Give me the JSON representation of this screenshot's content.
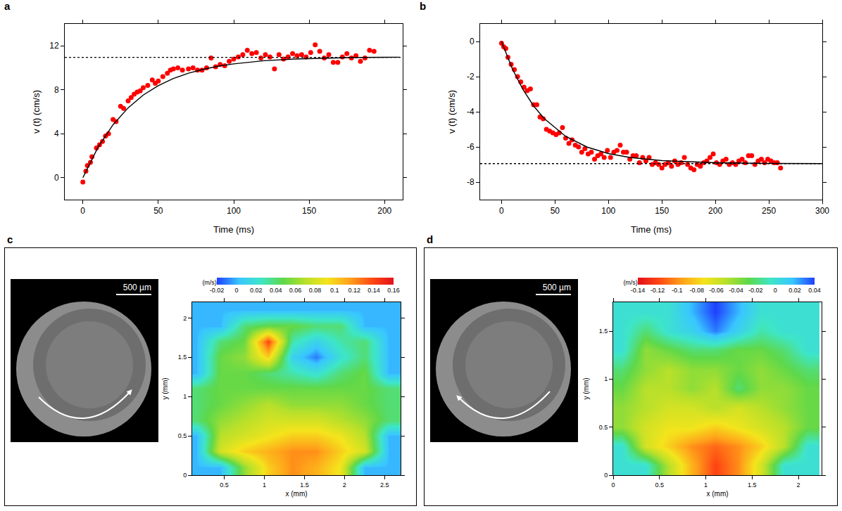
{
  "chart_data": [
    {
      "panel": "a",
      "type": "scatter",
      "x_label": "Time (ms)",
      "y_label": "v (t) (cm/s)",
      "grid": false,
      "xlim": [
        -12,
        212
      ],
      "xticks": [
        0,
        50,
        100,
        150,
        200
      ],
      "ylim": [
        -2,
        14
      ],
      "yticks": [
        0,
        4,
        8,
        12
      ],
      "series": [
        {
          "type": "scatter",
          "marker": "circle",
          "color": "#ff0000",
          "x": [
            0,
            2,
            3,
            5,
            6,
            9,
            11,
            13,
            15,
            17,
            20,
            22,
            25,
            27,
            30,
            32,
            34,
            36,
            38,
            40,
            43,
            46,
            48,
            50,
            53,
            56,
            58,
            60,
            63,
            66,
            70,
            73,
            76,
            79,
            82,
            85,
            88,
            91,
            94,
            97,
            100,
            103,
            106,
            109,
            112,
            115,
            118,
            121,
            124,
            127,
            130,
            133,
            136,
            139,
            142,
            145,
            148,
            151,
            154,
            157,
            160,
            163,
            166,
            169,
            172,
            175,
            178,
            181,
            184,
            187,
            190,
            193
          ],
          "values": [
            -0.4,
            0.6,
            1.1,
            1.4,
            1.9,
            2.7,
            3.0,
            3.3,
            3.8,
            4.0,
            5.3,
            5.1,
            6.5,
            6.3,
            7.0,
            7.3,
            7.6,
            7.8,
            7.9,
            8.2,
            8.4,
            8.9,
            8.6,
            8.8,
            9.2,
            9.5,
            9.8,
            9.9,
            10.0,
            9.8,
            9.9,
            10.0,
            9.8,
            9.8,
            10.0,
            10.9,
            10.1,
            10.3,
            10.2,
            10.6,
            10.8,
            11.0,
            11.2,
            11.6,
            11.3,
            11.4,
            10.9,
            11.2,
            11.0,
            9.9,
            11.2,
            10.8,
            11.0,
            11.3,
            11.1,
            11.2,
            11.0,
            11.4,
            12.1,
            11.5,
            10.9,
            11.2,
            10.5,
            10.5,
            11.0,
            11.3,
            10.9,
            11.1,
            10.6,
            10.9,
            11.6,
            11.5
          ]
        },
        {
          "type": "line",
          "line_style": "solid",
          "color": "#000000",
          "x": [
            0,
            10,
            20,
            30,
            40,
            50,
            60,
            70,
            80,
            90,
            100,
            120,
            140,
            160,
            180,
            200,
            210
          ],
          "values": [
            0,
            2.76,
            4.82,
            6.36,
            7.52,
            8.38,
            9.03,
            9.51,
            9.87,
            10.16,
            10.36,
            10.65,
            10.8,
            10.89,
            10.94,
            10.96,
            10.97
          ]
        },
        {
          "type": "line",
          "line_style": "dotted",
          "color": "#000000",
          "x": [
            -12,
            212
          ],
          "values": [
            10.95,
            10.95
          ]
        }
      ]
    },
    {
      "panel": "b",
      "type": "scatter",
      "x_label": "Time (ms)",
      "y_label": "v (t) (cm/s)",
      "grid": false,
      "xlim": [
        -20,
        300
      ],
      "xticks": [
        0,
        50,
        100,
        150,
        200,
        250,
        300
      ],
      "ylim": [
        -9,
        1
      ],
      "yticks": [
        -8,
        -6,
        -4,
        -2,
        0
      ],
      "series": [
        {
          "type": "scatter",
          "marker": "circle",
          "color": "#ff0000",
          "x": [
            0,
            2,
            4,
            6,
            9,
            12,
            15,
            18,
            21,
            24,
            27,
            30,
            33,
            36,
            39,
            42,
            45,
            48,
            51,
            54,
            57,
            60,
            63,
            66,
            69,
            72,
            75,
            78,
            81,
            84,
            87,
            90,
            93,
            96,
            99,
            102,
            105,
            108,
            111,
            114,
            117,
            120,
            123,
            126,
            129,
            132,
            135,
            138,
            141,
            144,
            147,
            150,
            153,
            156,
            159,
            162,
            165,
            168,
            171,
            174,
            177,
            180,
            183,
            186,
            189,
            192,
            195,
            198,
            201,
            204,
            207,
            210,
            213,
            216,
            219,
            222,
            225,
            228,
            231,
            234,
            237,
            240,
            243,
            246,
            249,
            252,
            255,
            258,
            261
          ],
          "values": [
            -0.1,
            -0.3,
            -0.4,
            -0.9,
            -1.3,
            -1.6,
            -2.0,
            -2.3,
            -2.6,
            -2.8,
            -2.7,
            -3.6,
            -3.6,
            -4.3,
            -4.4,
            -5.0,
            -5.1,
            -5.2,
            -5.3,
            -5.2,
            -4.9,
            -5.5,
            -5.8,
            -5.6,
            -5.9,
            -6.0,
            -6.3,
            -6.1,
            -6.4,
            -6.3,
            -6.7,
            -6.5,
            -6.4,
            -6.6,
            -6.2,
            -6.6,
            -6.3,
            -6.2,
            -5.9,
            -6.3,
            -6.3,
            -6.7,
            -6.5,
            -6.5,
            -6.9,
            -6.6,
            -6.8,
            -6.6,
            -7.0,
            -6.9,
            -7.0,
            -7.2,
            -7.0,
            -6.9,
            -7.1,
            -6.8,
            -7.0,
            -6.9,
            -6.6,
            -7.0,
            -7.2,
            -7.3,
            -7.0,
            -7.1,
            -6.9,
            -6.8,
            -6.6,
            -6.4,
            -6.9,
            -7.0,
            -6.8,
            -6.7,
            -7.0,
            -6.9,
            -7.0,
            -6.8,
            -6.7,
            -6.9,
            -6.5,
            -6.5,
            -7.0,
            -6.8,
            -6.7,
            -6.9,
            -6.7,
            -6.8,
            -6.9,
            -6.9,
            -7.2
          ]
        },
        {
          "type": "line",
          "line_style": "solid",
          "color": "#000000",
          "x": [
            0,
            10,
            20,
            30,
            40,
            60,
            80,
            100,
            120,
            150,
            200,
            250,
            300
          ],
          "values": [
            0,
            -1.54,
            -2.73,
            -3.67,
            -4.39,
            -5.4,
            -6.01,
            -6.38,
            -6.6,
            -6.78,
            -6.9,
            -6.94,
            -6.95
          ]
        },
        {
          "type": "line",
          "line_style": "dotted",
          "color": "#000000",
          "x": [
            -20,
            300
          ],
          "values": [
            -6.95,
            -6.95
          ]
        }
      ]
    },
    {
      "panel": "c",
      "type": "heatmap",
      "scale_bar": "500 µm",
      "x_label": "x (mm)",
      "y_label": "y (mm)",
      "xlim": [
        0.1,
        2.7
      ],
      "xticks": [
        0.5,
        1,
        1.5,
        2,
        2.5
      ],
      "ylim": [
        0,
        2.2
      ],
      "yticks": [
        0,
        0.5,
        1,
        1.5,
        2
      ],
      "colors": [
        "#1f3fff",
        "#39c6ff",
        "#3ee6c6",
        "#5ed84a",
        "#b8e02a",
        "#f4e41c",
        "#ffa21a",
        "#ff4a14",
        "#e3101a"
      ],
      "colorbar": {
        "title": "(m/s)",
        "range": [
          -0.02,
          0.16
        ],
        "ticks": [
          -0.02,
          0,
          0.02,
          0.04,
          0.06,
          0.08,
          0.1,
          0.12,
          0.14,
          0.16
        ]
      },
      "x": [
        0.15,
        0.45,
        0.75,
        1.05,
        1.35,
        1.65,
        1.95,
        2.25,
        2.55
      ],
      "y": [
        0.1,
        0.3,
        0.5,
        0.7,
        0.9,
        1.1,
        1.3,
        1.5,
        1.7,
        1.9,
        2.1
      ],
      "z": [
        [
          0,
          0,
          0.06,
          0.1,
          0.12,
          0.11,
          0.09,
          0,
          0
        ],
        [
          0,
          0.08,
          0.1,
          0.11,
          0.12,
          0.12,
          0.1,
          0.08,
          0
        ],
        [
          0,
          0.07,
          0.08,
          0.09,
          0.1,
          0.1,
          0.09,
          0.07,
          0
        ],
        [
          0.04,
          0.06,
          0.07,
          0.08,
          0.08,
          0.08,
          0.07,
          0.06,
          0.04
        ],
        [
          0.04,
          0.05,
          0.06,
          0.07,
          0.06,
          0.06,
          0.06,
          0.05,
          0.04
        ],
        [
          0.04,
          0.05,
          0.05,
          0.05,
          0.05,
          0.05,
          0.05,
          0.05,
          0.04
        ],
        [
          0,
          0.05,
          0.05,
          0.04,
          0.03,
          0.02,
          0.04,
          0.05,
          0
        ],
        [
          0,
          0.05,
          0.06,
          0.1,
          0.01,
          -0.01,
          0.02,
          0.04,
          0
        ],
        [
          0,
          0.04,
          0.05,
          0.14,
          0.03,
          0.01,
          0.03,
          0.04,
          0
        ],
        [
          0,
          0,
          0.04,
          0.05,
          0.05,
          0.04,
          0.04,
          0,
          0
        ],
        [
          0,
          0,
          0,
          0,
          0,
          0,
          0,
          0,
          0
        ]
      ]
    },
    {
      "panel": "d",
      "type": "heatmap",
      "scale_bar": "500 µm",
      "x_label": "x (mm)",
      "y_label": "y (mm)",
      "xlim": [
        0,
        2.25
      ],
      "xticks": [
        0,
        0.5,
        1,
        1.5,
        2
      ],
      "ylim": [
        0,
        1.8
      ],
      "yticks": [
        0,
        0.5,
        1,
        1.5
      ],
      "colors": [
        "#e3101a",
        "#ff4a14",
        "#ffa21a",
        "#f4e41c",
        "#b8e02a",
        "#5ed84a",
        "#3ee6c6",
        "#39c6ff",
        "#1f3fff"
      ],
      "colorbar": {
        "title": "(m/s)",
        "range": [
          -0.14,
          0.04
        ],
        "ticks": [
          -0.14,
          -0.12,
          -0.1,
          -0.08,
          -0.06,
          -0.04,
          -0.02,
          0,
          0.02,
          0.04
        ]
      },
      "x": [
        0.1,
        0.35,
        0.6,
        0.85,
        1.1,
        1.35,
        1.6,
        1.85,
        2.1
      ],
      "y": [
        0.1,
        0.3,
        0.5,
        0.7,
        0.9,
        1.1,
        1.3,
        1.5,
        1.7
      ],
      "z": [
        [
          0,
          0,
          -0.05,
          -0.09,
          -0.12,
          -0.1,
          -0.06,
          0,
          0
        ],
        [
          0,
          -0.06,
          -0.08,
          -0.1,
          -0.11,
          -0.1,
          -0.08,
          -0.05,
          0
        ],
        [
          -0.04,
          -0.06,
          -0.07,
          -0.07,
          -0.08,
          -0.07,
          -0.06,
          -0.05,
          -0.03
        ],
        [
          -0.04,
          -0.05,
          -0.06,
          -0.06,
          -0.05,
          -0.06,
          -0.05,
          -0.04,
          -0.03
        ],
        [
          -0.03,
          -0.05,
          -0.05,
          -0.04,
          -0.05,
          -0.02,
          -0.04,
          -0.04,
          -0.03
        ],
        [
          -0.02,
          -0.04,
          -0.05,
          -0.04,
          -0.04,
          -0.03,
          -0.04,
          -0.03,
          -0.02
        ],
        [
          0,
          -0.04,
          -0.03,
          -0.02,
          -0.02,
          -0.03,
          -0.03,
          -0.02,
          0
        ],
        [
          0,
          -0.02,
          0,
          0.01,
          0.03,
          0.01,
          -0.01,
          0,
          0
        ],
        [
          0,
          0,
          0,
          0.02,
          0.04,
          0.02,
          0,
          0,
          0
        ]
      ]
    }
  ]
}
